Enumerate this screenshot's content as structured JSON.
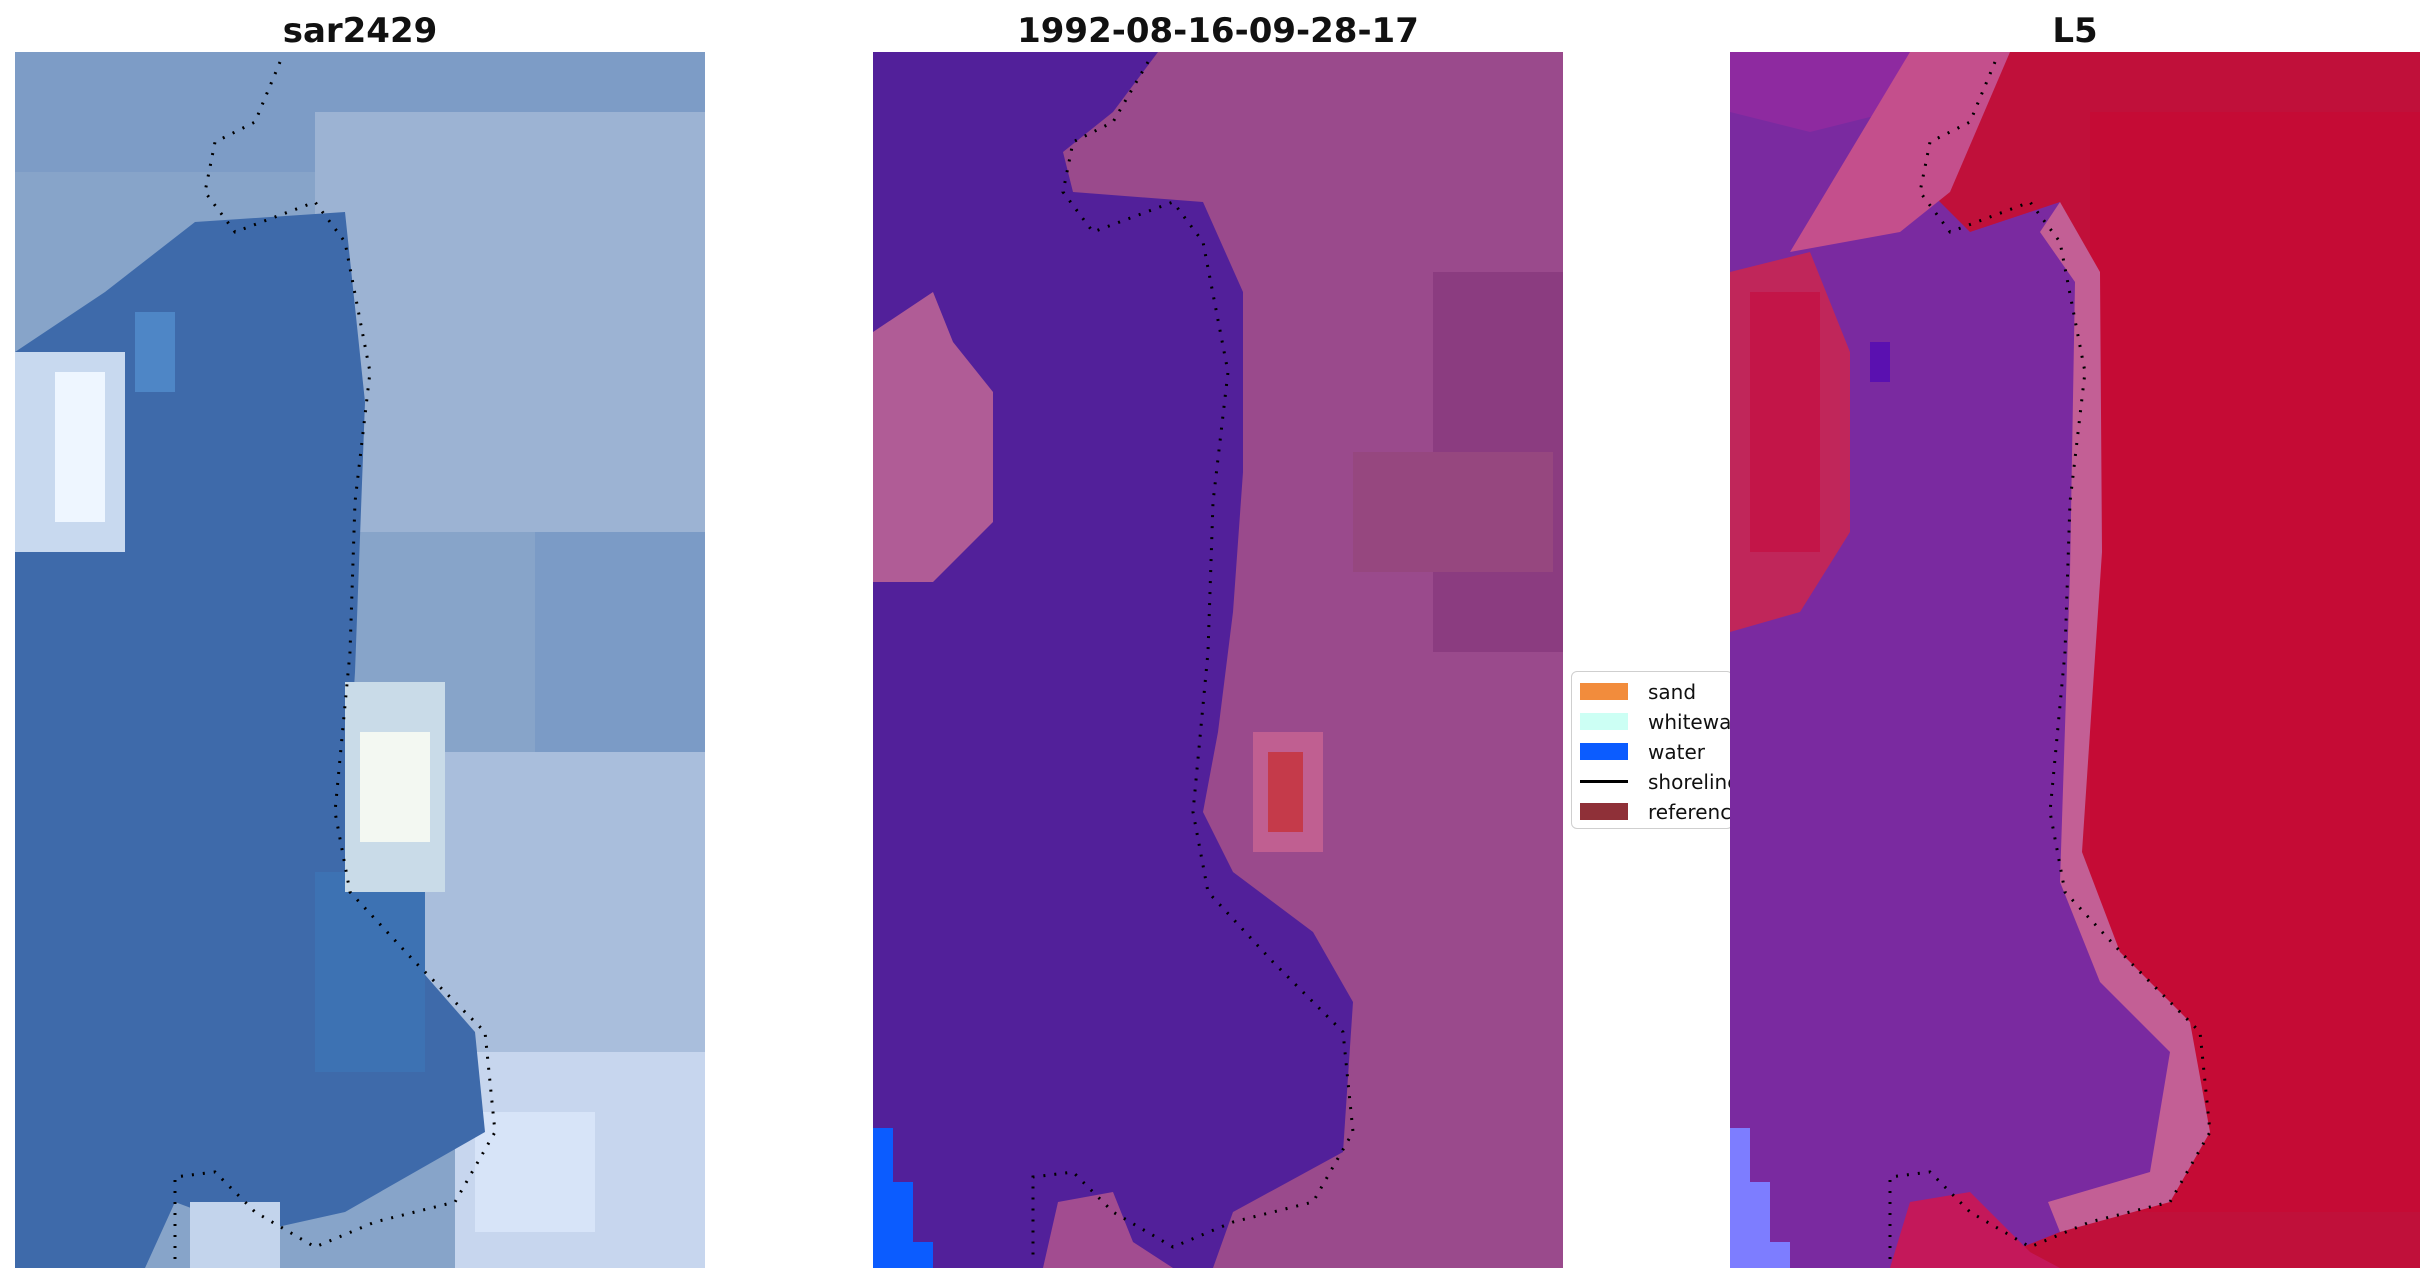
{
  "panels": [
    {
      "title": "sar2429"
    },
    {
      "title": "1992-08-16-09-28-17"
    },
    {
      "title": "L5"
    }
  ],
  "legend": {
    "items": [
      {
        "label": "sand",
        "color": "#f28c3c",
        "kind": "patch"
      },
      {
        "label": "whitewater",
        "color": "#ccfff4",
        "kind": "patch"
      },
      {
        "label": "water",
        "color": "#0b5cff",
        "kind": "patch"
      },
      {
        "label": "shoreline",
        "color": "#000000",
        "kind": "line"
      },
      {
        "label": "reference",
        "color": "#8f3038",
        "kind": "patch"
      }
    ]
  },
  "colors": {
    "sar_water": "#3e6aaa",
    "sar_land": "#8ea9cc",
    "class_water": "#52209a",
    "class_land": "#9a4a8c",
    "index_water": "#7a2aa0",
    "index_land": "#c0103a"
  }
}
